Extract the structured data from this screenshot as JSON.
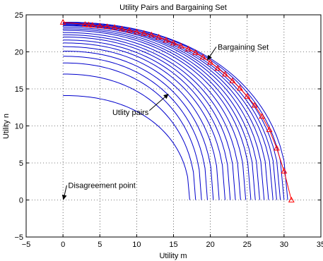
{
  "chart_data": {
    "type": "line",
    "title": "Utility Pairs and Bargaining Set",
    "xlabel": "Utility m",
    "ylabel": "Utility n",
    "xlim": [
      -5,
      35
    ],
    "ylim": [
      -5,
      25
    ],
    "xticks": [
      -5,
      0,
      5,
      10,
      15,
      20,
      25,
      30,
      35
    ],
    "yticks": [
      -5,
      0,
      5,
      10,
      15,
      20,
      25
    ],
    "grid": true,
    "line_color": "#0000cc",
    "marker_color": "#ff0000",
    "curve_shape_exponent": 2.2,
    "utility_pair_curves": [
      {
        "y_max": 14.1,
        "x_max": 17.2
      },
      {
        "y_max": 17.0,
        "x_max": 18.0
      },
      {
        "y_max": 18.5,
        "x_max": 18.8
      },
      {
        "y_max": 19.4,
        "x_max": 19.6
      },
      {
        "y_max": 20.1,
        "x_max": 20.4
      },
      {
        "y_max": 20.7,
        "x_max": 21.2
      },
      {
        "y_max": 21.2,
        "x_max": 22.0
      },
      {
        "y_max": 21.6,
        "x_max": 22.7
      },
      {
        "y_max": 22.0,
        "x_max": 23.4
      },
      {
        "y_max": 22.3,
        "x_max": 24.1
      },
      {
        "y_max": 22.6,
        "x_max": 24.8
      },
      {
        "y_max": 22.9,
        "x_max": 25.5
      },
      {
        "y_max": 23.1,
        "x_max": 26.1
      },
      {
        "y_max": 23.3,
        "x_max": 26.7
      },
      {
        "y_max": 23.5,
        "x_max": 27.3
      },
      {
        "y_max": 23.6,
        "x_max": 27.9
      },
      {
        "y_max": 23.7,
        "x_max": 28.5
      },
      {
        "y_max": 23.8,
        "x_max": 29.0
      },
      {
        "y_max": 23.9,
        "x_max": 29.5
      },
      {
        "y_max": 24.0,
        "x_max": 30.0
      },
      {
        "y_max": 24.0,
        "x_max": 30.5
      }
    ],
    "bargaining_set": {
      "name": "Bargaining Set",
      "points": [
        [
          0,
          24.0
        ],
        [
          3,
          23.7
        ],
        [
          3.5,
          23.65
        ],
        [
          4,
          23.6
        ],
        [
          5,
          23.5
        ],
        [
          6,
          23.4
        ],
        [
          7,
          23.3
        ],
        [
          8,
          23.1
        ],
        [
          9,
          22.9
        ],
        [
          10,
          22.7
        ],
        [
          11,
          22.5
        ],
        [
          12,
          22.3
        ],
        [
          13,
          22.0
        ],
        [
          14,
          21.6
        ],
        [
          15,
          21.2
        ],
        [
          16,
          20.8
        ],
        [
          17,
          20.4
        ],
        [
          18,
          19.9
        ],
        [
          19,
          19.3
        ],
        [
          20,
          18.6
        ],
        [
          21,
          17.8
        ],
        [
          22,
          17.0
        ],
        [
          23,
          16.1
        ],
        [
          24,
          15.1
        ],
        [
          25,
          14.0
        ],
        [
          26,
          12.8
        ],
        [
          27,
          11.3
        ],
        [
          28,
          9.5
        ],
        [
          29,
          7.0
        ],
        [
          30,
          3.9
        ],
        [
          31,
          0.0
        ]
      ]
    },
    "annotations": [
      {
        "text": "Bargaining Set",
        "label_at": [
          21,
          20.3
        ],
        "arrow_to": [
          19.6,
          18.9
        ]
      },
      {
        "text": "Utlity pairs",
        "label_at": [
          6.7,
          11.5
        ],
        "arrow_to": [
          14.3,
          14.3
        ]
      },
      {
        "text": "Disagreement point",
        "label_at": [
          0.7,
          1.6
        ],
        "arrow_to": [
          0.05,
          0.05
        ]
      }
    ]
  }
}
